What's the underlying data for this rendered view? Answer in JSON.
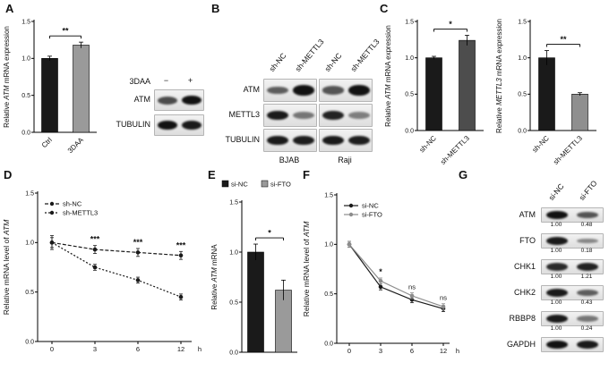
{
  "panels": {
    "A": {
      "letter": "A"
    },
    "B": {
      "letter": "B"
    },
    "C": {
      "letter": "C"
    },
    "D": {
      "letter": "D"
    },
    "E": {
      "letter": "E"
    },
    "F": {
      "letter": "F"
    },
    "G": {
      "letter": "G"
    }
  },
  "blots": {
    "A": {
      "header_label": "3DAA",
      "lane_symbols": [
        "−",
        "+"
      ],
      "rows": [
        {
          "name": "ATM",
          "bands": [
            0.6,
            0.95
          ]
        },
        {
          "name": "TUBULIN",
          "bands": [
            0.95,
            0.9
          ]
        }
      ]
    },
    "B": {
      "lanes": [
        "sh-NC",
        "sh-METTL3",
        "sh-NC",
        "sh-METTL3"
      ],
      "groups": [
        "BJAB",
        "Raji"
      ],
      "rows": [
        {
          "name": "ATM",
          "bands": [
            [
              0.5,
              0.95
            ],
            [
              0.55,
              0.95
            ]
          ]
        },
        {
          "name": "METTL3",
          "bands": [
            [
              0.9,
              0.35
            ],
            [
              0.85,
              0.3
            ]
          ]
        },
        {
          "name": "TUBULIN",
          "bands": [
            [
              0.9,
              0.88
            ],
            [
              0.9,
              0.88
            ]
          ]
        }
      ]
    },
    "G": {
      "lanes": [
        "si-NC",
        "si-FTO"
      ],
      "rows": [
        {
          "name": "ATM",
          "values": [
            "1.00",
            "0.48"
          ],
          "bands": [
            0.95,
            0.55
          ]
        },
        {
          "name": "FTO",
          "values": [
            "1.00",
            "0.18"
          ],
          "bands": [
            0.9,
            0.25
          ]
        },
        {
          "name": "CHK1",
          "values": [
            "1.00",
            "1.21"
          ],
          "bands": [
            0.8,
            0.85
          ]
        },
        {
          "name": "CHK2",
          "values": [
            "1.00",
            "0.43"
          ],
          "bands": [
            0.9,
            0.5
          ]
        },
        {
          "name": "RBBP8",
          "values": [
            "1.00",
            "0.24"
          ],
          "bands": [
            0.9,
            0.35
          ]
        },
        {
          "name": "GAPDH",
          "values": [],
          "bands": [
            0.95,
            0.9
          ]
        }
      ]
    }
  },
  "chart_data": [
    {
      "id": "A-bar",
      "type": "bar",
      "panel": "A",
      "ylabel": "Relative ATM mRNA expression",
      "categories": [
        "Ctrl",
        "3DAA"
      ],
      "values": [
        1.0,
        1.18
      ],
      "errors": [
        0.03,
        0.04
      ],
      "bar_colors": [
        "#1a1a1a",
        "#9a9a9a"
      ],
      "ylim": [
        0,
        1.5
      ],
      "yticks": [
        0,
        0.5,
        1.0,
        1.5
      ],
      "significance": {
        "label": "**",
        "between": [
          0,
          1
        ]
      }
    },
    {
      "id": "C-left-bar",
      "type": "bar",
      "panel": "C",
      "ylabel": "Relative ATM mRNA expression",
      "categories": [
        "sh-NC",
        "sh-METTL3"
      ],
      "values": [
        1.0,
        1.24
      ],
      "errors": [
        0.02,
        0.07
      ],
      "bar_colors": [
        "#1a1a1a",
        "#4d4d4d"
      ],
      "ylim": [
        0,
        1.5
      ],
      "yticks": [
        0,
        0.5,
        1.0,
        1.5
      ],
      "significance": {
        "label": "*",
        "between": [
          0,
          1
        ]
      }
    },
    {
      "id": "C-right-bar",
      "type": "bar",
      "panel": "C",
      "ylabel": "Relative METTL3 mRNA expression",
      "categories": [
        "sh-NC",
        "sh-METTL3"
      ],
      "values": [
        1.0,
        0.5
      ],
      "errors": [
        0.1,
        0.02
      ],
      "bar_colors": [
        "#1a1a1a",
        "#8f8f8f"
      ],
      "ylim": [
        0,
        1.5
      ],
      "yticks": [
        0,
        0.5,
        1.0,
        1.5
      ],
      "significance": {
        "label": "**",
        "between": [
          0,
          1
        ]
      }
    },
    {
      "id": "D-line",
      "type": "line",
      "panel": "D",
      "ylabel": "Relative mRNA level of ATM",
      "x_unit": "h",
      "x": [
        0,
        3,
        6,
        12
      ],
      "series": [
        {
          "name": "sh-NC",
          "values": [
            1.0,
            0.93,
            0.9,
            0.87
          ],
          "errors": [
            0.07,
            0.04,
            0.04,
            0.04
          ],
          "color": "#1a1a1a",
          "dash": "4,2"
        },
        {
          "name": "sh-METTL3",
          "values": [
            1.0,
            0.75,
            0.62,
            0.45
          ],
          "errors": [
            0.05,
            0.03,
            0.03,
            0.03
          ],
          "color": "#1a1a1a",
          "dash": "2,2"
        }
      ],
      "annotations": [
        {
          "x_index": 1,
          "label": "***"
        },
        {
          "x_index": 2,
          "label": "***"
        },
        {
          "x_index": 3,
          "label": "***"
        }
      ],
      "ylim": [
        0,
        1.5
      ],
      "yticks": [
        0,
        0.5,
        1.0,
        1.5
      ],
      "legend_position": "top-left"
    },
    {
      "id": "E-bar",
      "type": "bar",
      "panel": "E",
      "ylabel": "Relative ATM mRNA",
      "categories": [
        "si-NC",
        "si-FTO"
      ],
      "values": [
        1.0,
        0.62
      ],
      "errors": [
        0.08,
        0.1
      ],
      "bar_colors": [
        "#1a1a1a",
        "#9a9a9a"
      ],
      "ylim": [
        0,
        1.5
      ],
      "yticks": [
        0,
        0.5,
        1.0,
        1.5
      ],
      "significance": {
        "label": "*",
        "between": [
          0,
          1
        ]
      },
      "legend": [
        {
          "label": "si-NC",
          "color": "#1a1a1a"
        },
        {
          "label": "si-FTO",
          "color": "#9a9a9a"
        }
      ]
    },
    {
      "id": "F-line",
      "type": "line",
      "panel": "F",
      "ylabel": "Relative mRNA level of ATM",
      "x_unit": "h",
      "x": [
        0,
        3,
        6,
        12
      ],
      "series": [
        {
          "name": "si-NC",
          "values": [
            1.0,
            0.57,
            0.44,
            0.35
          ],
          "errors": [
            0.03,
            0.03,
            0.03,
            0.03
          ],
          "color": "#1a1a1a",
          "dash": ""
        },
        {
          "name": "si-FTO",
          "values": [
            1.0,
            0.63,
            0.48,
            0.37
          ],
          "errors": [
            0.03,
            0.03,
            0.03,
            0.03
          ],
          "color": "#8c8c8c",
          "dash": ""
        }
      ],
      "annotations": [
        {
          "x_index": 1,
          "label": "*"
        },
        {
          "x_index": 2,
          "label": "ns"
        },
        {
          "x_index": 3,
          "label": "ns"
        }
      ],
      "ylim": [
        0,
        1.5
      ],
      "yticks": [
        0,
        0.5,
        1.0,
        1.5
      ],
      "legend_position": "top-left"
    }
  ]
}
